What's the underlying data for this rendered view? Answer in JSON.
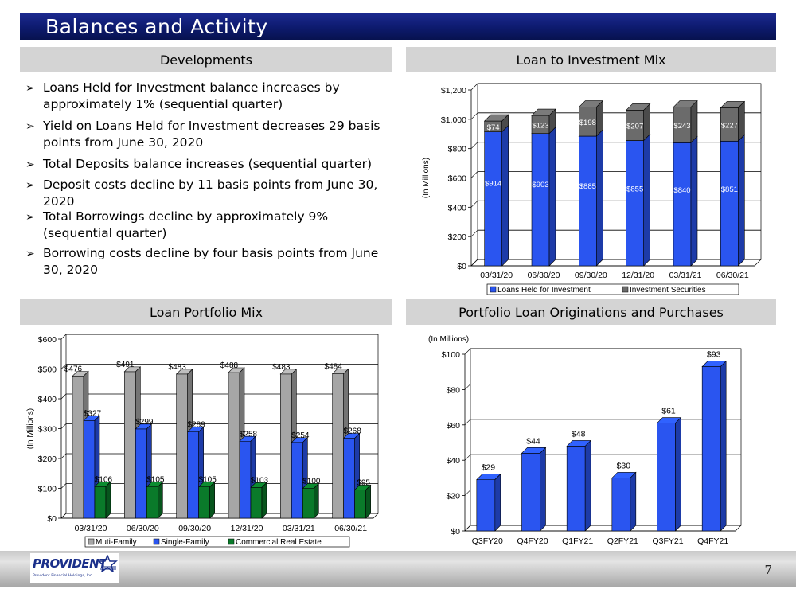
{
  "title": "Balances and Activity",
  "sections": {
    "developments": "Developments",
    "loan_investment_mix": "Loan to Investment Mix",
    "loan_portfolio_mix": "Loan Portfolio Mix",
    "originations": "Portfolio Loan Originations and Purchases"
  },
  "bullets": [
    {
      "marker": "➢",
      "text": "Loans Held for Investment balance increases by approximately 1% (sequential quarter)"
    },
    {
      "marker": "➢",
      "text": "Yield on Loans Held for Investment decreases 29 basis points from June 30, 2020"
    },
    {
      "marker": "➢",
      "text": "Total Deposits balance increases (sequential quarter)"
    },
    {
      "marker": "➢",
      "text": "Deposit costs decline by 11 basis points from June 30, 2020"
    },
    {
      "marker": "➢",
      "text": "Total Borrowings decline by approximately 9% (sequential quarter)"
    },
    {
      "marker": "➢",
      "text": "Borrowing costs decline by four basis points from June 30, 2020"
    }
  ],
  "chart_data": [
    {
      "type": "bar",
      "stacked": true,
      "ylabel": "(In Millions)",
      "ylim": [
        0,
        1200
      ],
      "yticks": [
        "$0",
        "$200",
        "$400",
        "$600",
        "$800",
        "$1,000",
        "$1,200"
      ],
      "categories": [
        "03/31/20",
        "06/30/20",
        "09/30/20",
        "12/31/20",
        "03/31/21",
        "06/30/21"
      ],
      "series": [
        {
          "name": "Loans Held for Investment",
          "values": [
            914,
            903,
            885,
            855,
            840,
            851
          ],
          "labels": [
            "$914",
            "$903",
            "$885",
            "$855",
            "$840",
            "$851"
          ],
          "color": "#2a55f0"
        },
        {
          "name": "Investment Securities",
          "values": [
            74,
            123,
            198,
            207,
            243,
            227
          ],
          "labels": [
            "$74",
            "$123",
            "$198",
            "$207",
            "$243",
            "$227"
          ],
          "color": "#6b6b6b"
        }
      ],
      "legend_position": "bottom"
    },
    {
      "type": "bar",
      "ylabel": "(In Millions)",
      "ylim": [
        0,
        600
      ],
      "yticks": [
        "$0",
        "$100",
        "$200",
        "$300",
        "$400",
        "$500",
        "$600"
      ],
      "categories": [
        "03/31/20",
        "06/30/20",
        "09/30/20",
        "12/31/20",
        "03/31/21",
        "06/30/21"
      ],
      "series": [
        {
          "name": "Muti-Family",
          "values": [
            476,
            491,
            483,
            488,
            483,
            484
          ],
          "labels": [
            "$476",
            "$491",
            "$483",
            "$488",
            "$483",
            "$484"
          ],
          "color": "#a6a6a6"
        },
        {
          "name": "Single-Family",
          "values": [
            327,
            299,
            289,
            258,
            254,
            268
          ],
          "labels": [
            "$327",
            "$299",
            "$289",
            "$258",
            "$254",
            "$268"
          ],
          "color": "#2a55f0"
        },
        {
          "name": "Commercial Real Estate",
          "values": [
            106,
            105,
            105,
            103,
            100,
            95
          ],
          "labels": [
            "$106",
            "$105",
            "$105",
            "$103",
            "$100",
            "$95"
          ],
          "color": "#0a7a2a"
        }
      ],
      "legend_position": "bottom"
    },
    {
      "type": "bar",
      "ylabel": "(In Millions)",
      "ylim": [
        0,
        100
      ],
      "yticks": [
        "$0",
        "$20",
        "$40",
        "$60",
        "$80",
        "$100"
      ],
      "categories": [
        "Q3FY20",
        "Q4FY20",
        "Q1FY21",
        "Q2FY21",
        "Q3FY21",
        "Q4FY21"
      ],
      "series": [
        {
          "name": "",
          "values": [
            29,
            44,
            48,
            30,
            61,
            93
          ],
          "labels": [
            "$29",
            "$44",
            "$48",
            "$30",
            "$61",
            "$93"
          ],
          "color": "#2a55f0"
        }
      ]
    }
  ],
  "footer": {
    "logo_word": "PROVIDENT",
    "logo_subtitle": "Provident Financial Holdings, Inc.",
    "page_number": "7"
  }
}
